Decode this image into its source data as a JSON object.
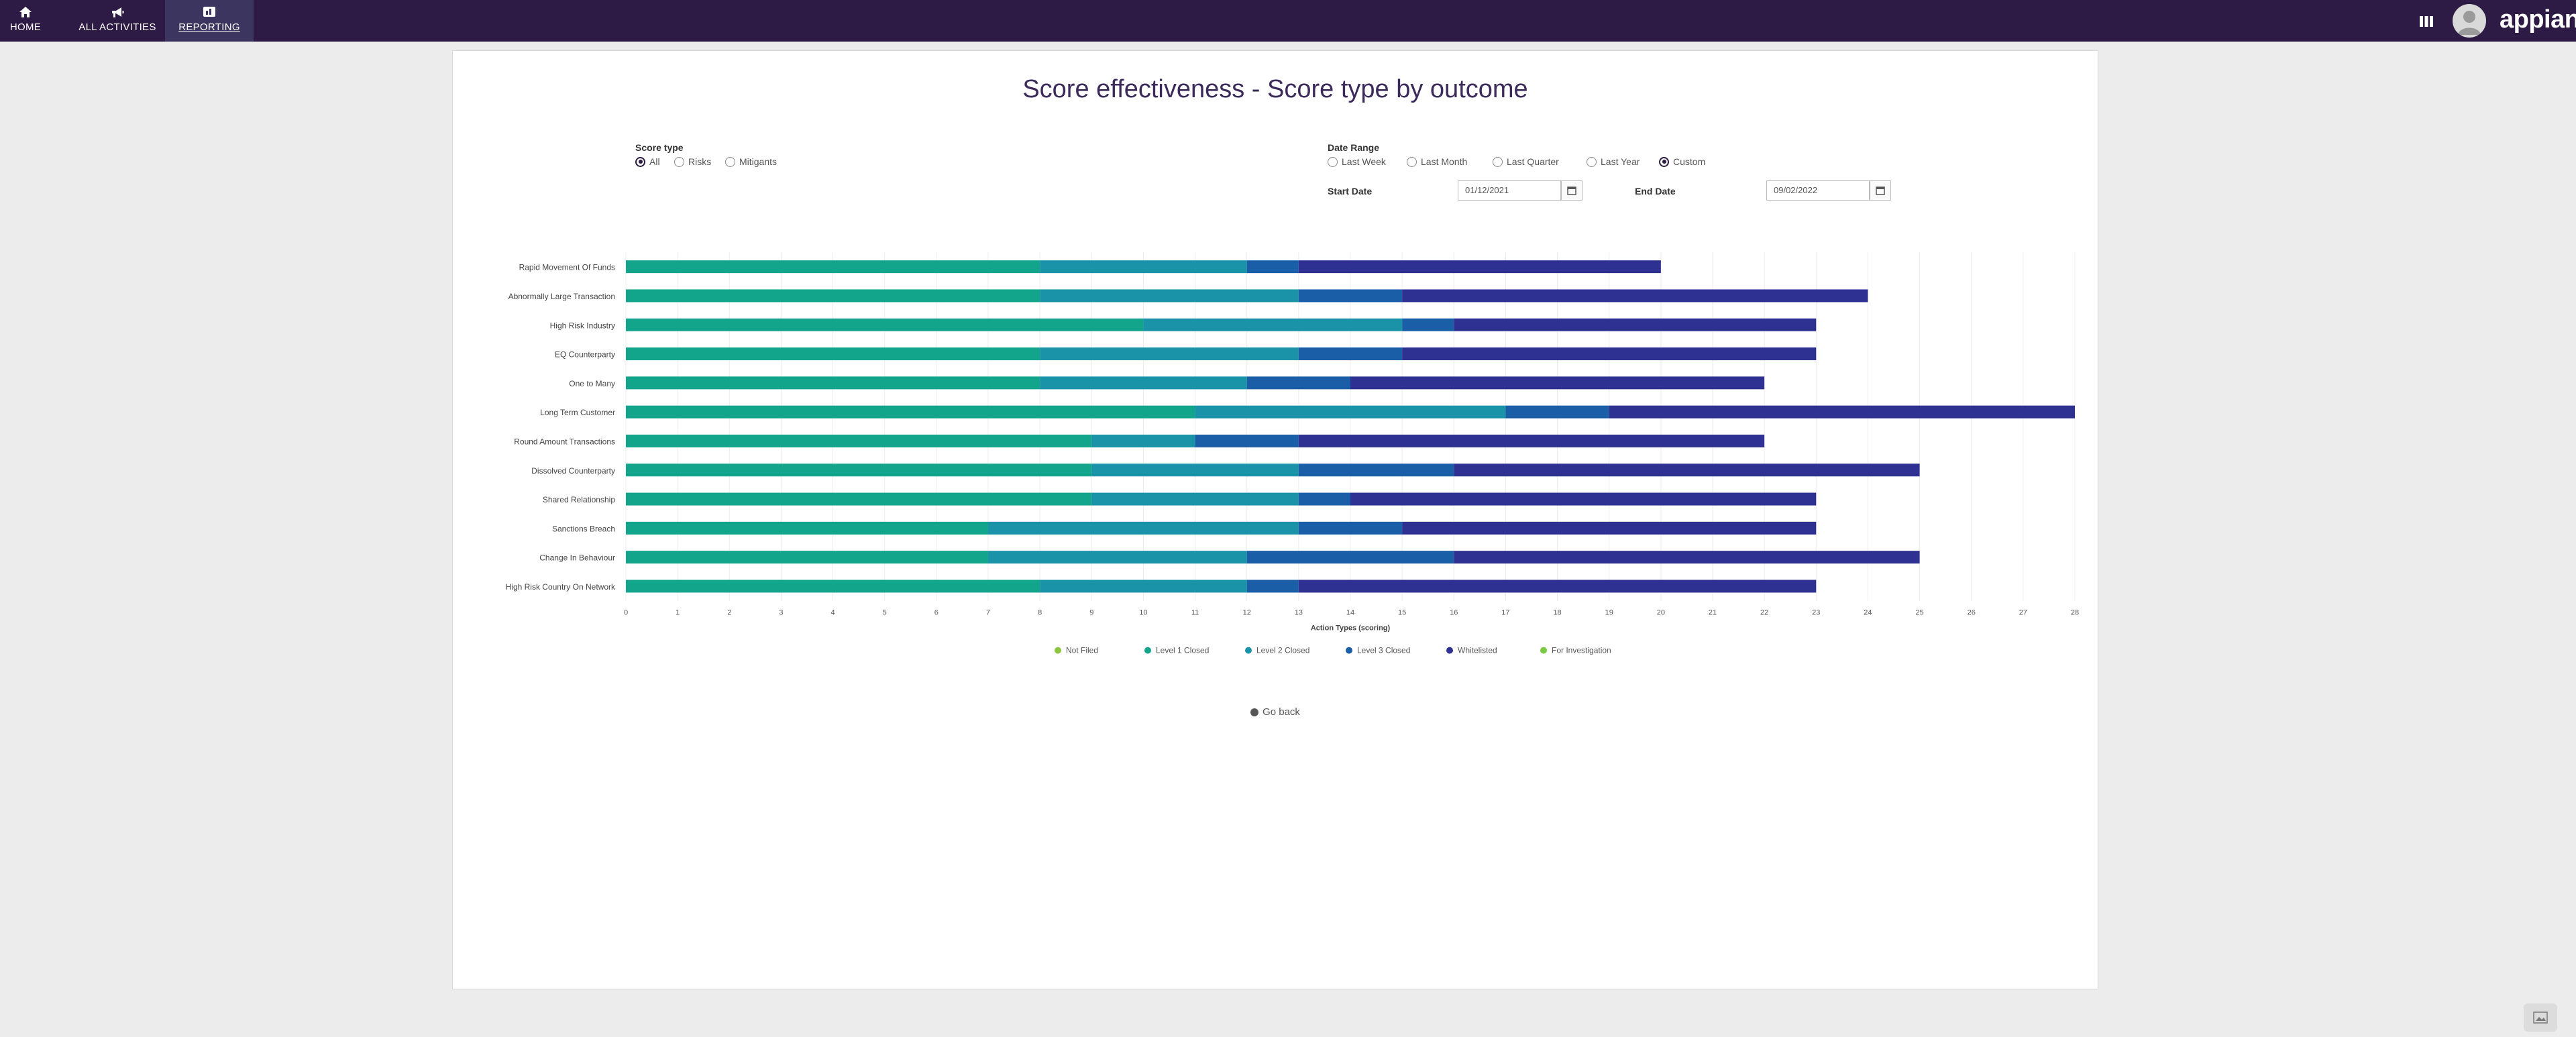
{
  "nav": {
    "home": {
      "label": "HOME",
      "icon": "home-icon"
    },
    "activities": {
      "label": "ALL ACTIVITIES",
      "icon": "megaphone-icon"
    },
    "reporting": {
      "label": "REPORTING",
      "icon": "report-icon"
    },
    "apps_icon": "grid-icon",
    "brand": "appian"
  },
  "page": {
    "title": "Score effectiveness - Score type by outcome",
    "go_back": "Go back"
  },
  "filters": {
    "score_type": {
      "label": "Score type",
      "options": [
        "All",
        "Risks",
        "Mitigants"
      ],
      "selected": "All"
    },
    "date_range": {
      "label": "Date Range",
      "options": [
        "Last Week",
        "Last Month",
        "Last Quarter",
        "Last Year",
        "Custom"
      ],
      "selected": "Custom",
      "start_label": "Start Date",
      "start_value": "01/12/2021",
      "end_label": "End Date",
      "end_value": "09/02/2022"
    }
  },
  "colors": {
    "nav_bg": "#2e1b45",
    "series": [
      "#8cc63f",
      "#12a58c",
      "#1a93a8",
      "#1b5ea8",
      "#2e3192",
      "#7ac943"
    ]
  },
  "chart_data": {
    "type": "bar",
    "orientation": "horizontal",
    "stacked": true,
    "xlabel": "Action Types (scoring)",
    "xlim": [
      0,
      28
    ],
    "xticks": [
      0,
      1,
      2,
      3,
      4,
      5,
      6,
      7,
      8,
      9,
      10,
      11,
      12,
      13,
      14,
      15,
      16,
      17,
      18,
      19,
      20,
      21,
      22,
      23,
      24,
      25,
      26,
      27,
      28
    ],
    "grid": true,
    "legend_position": "bottom",
    "categories": [
      "Rapid Movement Of Funds",
      "Abnormally Large Transaction",
      "High Risk Industry",
      "EQ Counterparty",
      "One to Many",
      "Long Term Customer",
      "Round Amount Transactions",
      "Dissolved Counterparty",
      "Shared Relationship",
      "Sanctions Breach",
      "Change In Behaviour",
      "High Risk Country On Network"
    ],
    "series": [
      {
        "name": "Not Filed",
        "values": [
          0,
          0,
          0,
          0,
          0,
          0,
          0,
          0,
          0,
          0,
          0,
          0
        ]
      },
      {
        "name": "Level 1 Closed",
        "values": [
          8,
          8,
          10,
          8,
          8,
          11,
          9,
          9,
          9,
          7,
          7,
          8
        ]
      },
      {
        "name": "Level 2 Closed",
        "values": [
          4,
          5,
          5,
          5,
          4,
          6,
          2,
          4,
          4,
          6,
          5,
          4
        ]
      },
      {
        "name": "Level 3 Closed",
        "values": [
          1,
          2,
          1,
          2,
          2,
          2,
          2,
          3,
          1,
          2,
          4,
          1
        ]
      },
      {
        "name": "Whitelisted",
        "values": [
          7,
          9,
          7,
          8,
          8,
          9,
          9,
          9,
          9,
          8,
          9,
          10
        ]
      },
      {
        "name": "For Investigation",
        "values": [
          0,
          0,
          0,
          0,
          0,
          0,
          0,
          0,
          0,
          0,
          0,
          0
        ]
      }
    ]
  }
}
